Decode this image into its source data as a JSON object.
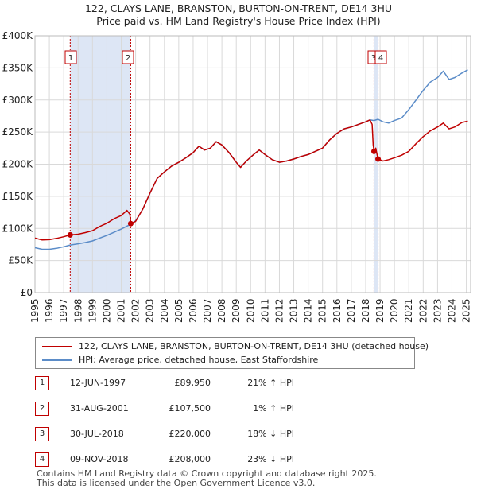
{
  "chart_data": {
    "type": "line",
    "title_lines": [
      "122, CLAYS LANE, BRANSTON, BURTON-ON-TRENT, DE14 3HU",
      "Price paid vs. HM Land Registry's House Price Index (HPI)"
    ],
    "xlim": [
      1995,
      2025.3
    ],
    "ylim": [
      0,
      400000
    ],
    "x_ticks": [
      "1995",
      "1996",
      "1997",
      "1998",
      "1999",
      "2000",
      "2001",
      "2002",
      "2003",
      "2004",
      "2005",
      "2006",
      "2007",
      "2008",
      "2009",
      "2010",
      "2011",
      "2012",
      "2013",
      "2014",
      "2015",
      "2016",
      "2017",
      "2018",
      "2019",
      "2020",
      "2021",
      "2022",
      "2023",
      "2024",
      "2025"
    ],
    "y_ticks": [
      {
        "value": 0,
        "label": "£0"
      },
      {
        "value": 50000,
        "label": "£50K"
      },
      {
        "value": 100000,
        "label": "£100K"
      },
      {
        "value": 150000,
        "label": "£150K"
      },
      {
        "value": 200000,
        "label": "£200K"
      },
      {
        "value": 250000,
        "label": "£250K"
      },
      {
        "value": 300000,
        "label": "£300K"
      },
      {
        "value": 350000,
        "label": "£350K"
      },
      {
        "value": 400000,
        "label": "£400K"
      }
    ],
    "shaded_periods": [
      [
        1997.45,
        2001.66
      ],
      [
        2018.58,
        2018.86
      ]
    ],
    "colors": {
      "property": "#c00000",
      "hpi": "#5b8cc8",
      "shade": "#dde6f5",
      "grid": "#d9d9d9"
    },
    "series": [
      {
        "name": "122, CLAYS LANE, BRANSTON, BURTON-ON-TRENT, DE14 3HU (detached house)",
        "color": "#c00000",
        "points": [
          [
            1995.0,
            85000
          ],
          [
            1995.5,
            82000
          ],
          [
            1996.0,
            82500
          ],
          [
            1996.5,
            84500
          ],
          [
            1997.0,
            87000
          ],
          [
            1997.45,
            89950
          ],
          [
            1998.0,
            91000
          ],
          [
            1998.5,
            93500
          ],
          [
            1999.0,
            96500
          ],
          [
            1999.5,
            103000
          ],
          [
            2000.0,
            108000
          ],
          [
            2000.5,
            115000
          ],
          [
            2001.0,
            120000
          ],
          [
            2001.4,
            128000
          ],
          [
            2001.6,
            122000
          ],
          [
            2001.66,
            107500
          ],
          [
            2002.0,
            111000
          ],
          [
            2002.5,
            130000
          ],
          [
            2003.0,
            155000
          ],
          [
            2003.5,
            178000
          ],
          [
            2004.0,
            188000
          ],
          [
            2004.5,
            197000
          ],
          [
            2005.0,
            203000
          ],
          [
            2005.5,
            210000
          ],
          [
            2006.0,
            218000
          ],
          [
            2006.4,
            228000
          ],
          [
            2006.8,
            222000
          ],
          [
            2007.2,
            225000
          ],
          [
            2007.6,
            235000
          ],
          [
            2008.0,
            230000
          ],
          [
            2008.5,
            218000
          ],
          [
            2009.0,
            203000
          ],
          [
            2009.3,
            195000
          ],
          [
            2009.7,
            205000
          ],
          [
            2010.2,
            215000
          ],
          [
            2010.6,
            222000
          ],
          [
            2011.0,
            215000
          ],
          [
            2011.5,
            207000
          ],
          [
            2012.0,
            203000
          ],
          [
            2012.5,
            205000
          ],
          [
            2013.0,
            208000
          ],
          [
            2013.5,
            212000
          ],
          [
            2014.0,
            215000
          ],
          [
            2014.5,
            220000
          ],
          [
            2015.0,
            225000
          ],
          [
            2015.5,
            238000
          ],
          [
            2016.0,
            248000
          ],
          [
            2016.5,
            255000
          ],
          [
            2017.0,
            258000
          ],
          [
            2017.5,
            262000
          ],
          [
            2018.0,
            266000
          ],
          [
            2018.3,
            269000
          ],
          [
            2018.45,
            262000
          ],
          [
            2018.52,
            230000
          ],
          [
            2018.58,
            220000
          ],
          [
            2018.7,
            225000
          ],
          [
            2018.86,
            208000
          ],
          [
            2019.2,
            205000
          ],
          [
            2019.6,
            207000
          ],
          [
            2020.0,
            210000
          ],
          [
            2020.5,
            214000
          ],
          [
            2021.0,
            220000
          ],
          [
            2021.5,
            232000
          ],
          [
            2022.0,
            243000
          ],
          [
            2022.5,
            252000
          ],
          [
            2023.0,
            258000
          ],
          [
            2023.4,
            264000
          ],
          [
            2023.8,
            255000
          ],
          [
            2024.2,
            258000
          ],
          [
            2024.7,
            265000
          ],
          [
            2025.1,
            267000
          ]
        ]
      },
      {
        "name": "HPI: Average price, detached house, East Staffordshire",
        "color": "#5b8cc8",
        "points": [
          [
            1995.0,
            70000
          ],
          [
            1995.5,
            67500
          ],
          [
            1996.0,
            67500
          ],
          [
            1996.5,
            69000
          ],
          [
            1997.0,
            71500
          ],
          [
            1997.45,
            74200
          ],
          [
            1998.0,
            76000
          ],
          [
            1998.5,
            78000
          ],
          [
            1999.0,
            80500
          ],
          [
            1999.5,
            85000
          ],
          [
            2000.0,
            89000
          ],
          [
            2000.5,
            94000
          ],
          [
            2001.0,
            99000
          ],
          [
            2001.4,
            103500
          ],
          [
            2001.66,
            106500
          ],
          [
            2002.0,
            112000
          ],
          [
            2002.5,
            130000
          ],
          [
            2003.0,
            155000
          ],
          [
            2003.5,
            178000
          ],
          [
            2004.0,
            188000
          ],
          [
            2004.5,
            197000
          ],
          [
            2005.0,
            203000
          ],
          [
            2005.5,
            210000
          ],
          [
            2006.0,
            218000
          ],
          [
            2006.4,
            228000
          ],
          [
            2006.8,
            222000
          ],
          [
            2007.2,
            225000
          ],
          [
            2007.6,
            235000
          ],
          [
            2008.0,
            230000
          ],
          [
            2008.5,
            218000
          ],
          [
            2009.0,
            203000
          ],
          [
            2009.3,
            195000
          ],
          [
            2009.7,
            205000
          ],
          [
            2010.2,
            215000
          ],
          [
            2010.6,
            222000
          ],
          [
            2011.0,
            215000
          ],
          [
            2011.5,
            207000
          ],
          [
            2012.0,
            203000
          ],
          [
            2012.5,
            205000
          ],
          [
            2013.0,
            208000
          ],
          [
            2013.5,
            212000
          ],
          [
            2014.0,
            215000
          ],
          [
            2014.5,
            220000
          ],
          [
            2015.0,
            225000
          ],
          [
            2015.5,
            238000
          ],
          [
            2016.0,
            248000
          ],
          [
            2016.5,
            255000
          ],
          [
            2017.0,
            258000
          ],
          [
            2017.5,
            262000
          ],
          [
            2018.0,
            266000
          ],
          [
            2018.3,
            269000
          ],
          [
            2018.58,
            268000
          ],
          [
            2018.86,
            270000
          ],
          [
            2019.2,
            266000
          ],
          [
            2019.6,
            264000
          ],
          [
            2020.0,
            268000
          ],
          [
            2020.5,
            272000
          ],
          [
            2021.0,
            285000
          ],
          [
            2021.5,
            300000
          ],
          [
            2022.0,
            315000
          ],
          [
            2022.5,
            328000
          ],
          [
            2023.0,
            335000
          ],
          [
            2023.4,
            345000
          ],
          [
            2023.8,
            332000
          ],
          [
            2024.2,
            335000
          ],
          [
            2024.7,
            342000
          ],
          [
            2025.1,
            347000
          ]
        ]
      }
    ],
    "sales": [
      {
        "label": "1",
        "x": 1997.45,
        "price": 89950
      },
      {
        "label": "2",
        "x": 2001.66,
        "price": 107500
      },
      {
        "label": "3",
        "x": 2018.58,
        "price": 220000
      },
      {
        "label": "4",
        "x": 2018.86,
        "price": 208000
      }
    ]
  },
  "legend": {
    "property": "122, CLAYS LANE, BRANSTON, BURTON-ON-TRENT, DE14 3HU (detached house)",
    "hpi": "HPI: Average price, detached house, East Staffordshire"
  },
  "transactions": [
    {
      "num": "1",
      "date": "12-JUN-1997",
      "price": "£89,950",
      "hpi": "21% ↑ HPI"
    },
    {
      "num": "2",
      "date": "31-AUG-2001",
      "price": "£107,500",
      "hpi": "1% ↑ HPI"
    },
    {
      "num": "3",
      "date": "30-JUL-2018",
      "price": "£220,000",
      "hpi": "18% ↓ HPI"
    },
    {
      "num": "4",
      "date": "09-NOV-2018",
      "price": "£208,000",
      "hpi": "23% ↓ HPI"
    }
  ],
  "footer": {
    "line1": "Contains HM Land Registry data © Crown copyright and database right 2025.",
    "line2": "This data is licensed under the Open Government Licence v3.0."
  }
}
